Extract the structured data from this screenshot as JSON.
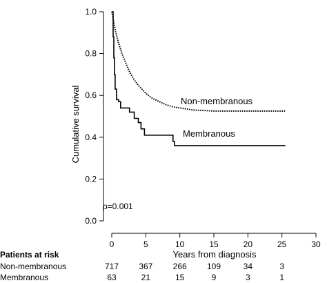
{
  "chart_data": {
    "type": "line",
    "chart_kind": "kaplan-meier survival curve",
    "xlabel": "Years from diagnosis",
    "ylabel": "Cumulative survival",
    "xlim": [
      0,
      30
    ],
    "ylim": [
      0,
      1
    ],
    "x_ticks": [
      0,
      5,
      10,
      15,
      20,
      25,
      30
    ],
    "y_ticks": [
      0.0,
      0.2,
      0.4,
      0.6,
      0.8,
      1.0
    ],
    "y_tick_labels": [
      "0.0",
      "0.2",
      "0.4",
      "0.6",
      "0.8",
      "1.0"
    ],
    "grid": false,
    "legend": "none (series labelled directly on plot)",
    "annotation": "p=0.001",
    "series": [
      {
        "name": "Non-membranous",
        "line_style": "dotted",
        "points": [
          [
            0,
            1.0
          ],
          [
            0.3,
            0.95
          ],
          [
            0.6,
            0.9
          ],
          [
            1.0,
            0.85
          ],
          [
            1.5,
            0.8
          ],
          [
            2.0,
            0.76
          ],
          [
            2.5,
            0.72
          ],
          [
            3.0,
            0.69
          ],
          [
            3.5,
            0.665
          ],
          [
            4.0,
            0.645
          ],
          [
            5.0,
            0.61
          ],
          [
            6.0,
            0.585
          ],
          [
            7.0,
            0.57
          ],
          [
            8.0,
            0.555
          ],
          [
            9.0,
            0.545
          ],
          [
            10.0,
            0.54
          ],
          [
            11.0,
            0.535
          ],
          [
            12.0,
            0.53
          ],
          [
            14.0,
            0.527
          ],
          [
            15.0,
            0.525
          ],
          [
            20.0,
            0.525
          ],
          [
            25.5,
            0.525
          ]
        ]
      },
      {
        "name": "Membranous",
        "line_style": "solid",
        "steps": [
          [
            0,
            1.0
          ],
          [
            0.2,
            0.88
          ],
          [
            0.3,
            0.78
          ],
          [
            0.4,
            0.7
          ],
          [
            0.5,
            0.63
          ],
          [
            0.7,
            0.58
          ],
          [
            1.0,
            0.57
          ],
          [
            1.3,
            0.54
          ],
          [
            2.0,
            0.54
          ],
          [
            2.6,
            0.52
          ],
          [
            3.3,
            0.49
          ],
          [
            3.9,
            0.47
          ],
          [
            4.3,
            0.44
          ],
          [
            4.8,
            0.41
          ],
          [
            9.0,
            0.38
          ],
          [
            9.2,
            0.36
          ],
          [
            25.5,
            0.36
          ]
        ]
      }
    ],
    "risk_table": {
      "title": "Patients at risk",
      "times": [
        0,
        5,
        10,
        15,
        20,
        25
      ],
      "rows": [
        {
          "label": "Non-membranous",
          "counts": [
            "717",
            "367",
            "266",
            "109",
            "34",
            "3"
          ]
        },
        {
          "label": "Membranous",
          "counts": [
            "63",
            "21",
            "15",
            "9",
            "3",
            "1"
          ]
        }
      ]
    }
  }
}
